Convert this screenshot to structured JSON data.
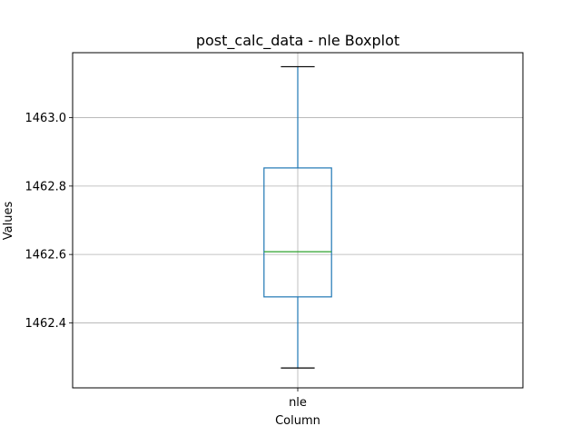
{
  "chart_data": {
    "type": "boxplot",
    "title": "post_calc_data - nle Boxplot",
    "xlabel": "Column",
    "ylabel": "Values",
    "categories": [
      "nle"
    ],
    "boxes": [
      {
        "name": "nle",
        "whisker_low": 1462.268,
        "q1": 1462.476,
        "median": 1462.608,
        "q3": 1462.853,
        "whisker_high": 1463.149
      }
    ],
    "ylim": [
      1462.21,
      1463.19
    ],
    "yticks": [
      "1462.4",
      "1462.6",
      "1462.8",
      "1463.0"
    ],
    "ytick_values": [
      1462.4,
      1462.6,
      1462.8,
      1463.0
    ],
    "grid": true,
    "colors": {
      "box": "#1f77b4",
      "median": "#2ca02c",
      "whisker": "#1f77b4",
      "cap": "#000000",
      "grid": "#b0b0b0"
    }
  }
}
